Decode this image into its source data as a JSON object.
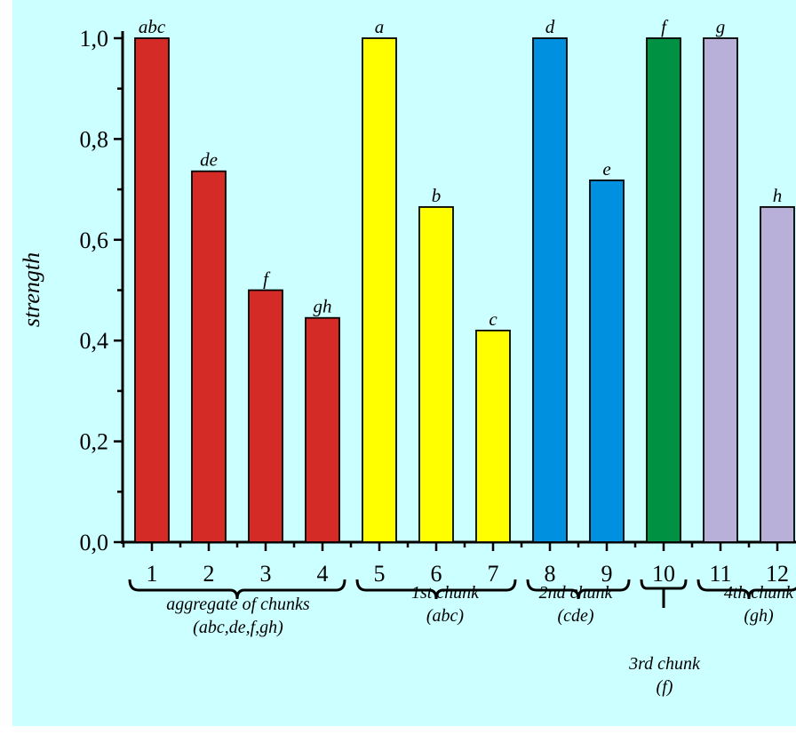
{
  "chart_data": {
    "type": "bar",
    "title": "",
    "xlabel": "",
    "ylabel": "strength",
    "ylim": [
      0,
      1.0
    ],
    "yticks": [
      "0,0",
      "0,2",
      "0,4",
      "0,6",
      "0,8",
      "1,0"
    ],
    "categories": [
      "1",
      "2",
      "3",
      "4",
      "5",
      "6",
      "7",
      "8",
      "9",
      "10",
      "11",
      "12"
    ],
    "values": [
      1.0,
      0.736,
      0.5,
      0.445,
      1.0,
      0.665,
      0.42,
      1.0,
      0.718,
      1.0,
      1.0,
      0.665
    ],
    "bar_labels": [
      "abc",
      "de",
      "f",
      "gh",
      "a",
      "b",
      "c",
      "d",
      "e",
      "f",
      "g",
      "h"
    ],
    "bar_colors": [
      "#d42b27",
      "#d42b27",
      "#d42b27",
      "#d42b27",
      "#ffff00",
      "#ffff00",
      "#ffff00",
      "#0090e0",
      "#0090e0",
      "#009143",
      "#b8b0d8",
      "#b8b0d8"
    ],
    "groups": [
      {
        "from": 0,
        "to": 3,
        "line1": "aggregate of chunks",
        "line2": "(abc,de,f,gh)"
      },
      {
        "from": 4,
        "to": 6,
        "line1": "1st chunk",
        "line2": "(abc)"
      },
      {
        "from": 7,
        "to": 8,
        "line1": "2nd chunk",
        "line2": "(cde)"
      },
      {
        "from": 9,
        "to": 9,
        "line1": "3rd chunk",
        "line2": "(f)"
      },
      {
        "from": 10,
        "to": 11,
        "line1": "4th chunk",
        "line2": "(gh)"
      }
    ],
    "grid": false,
    "legend": "none"
  }
}
